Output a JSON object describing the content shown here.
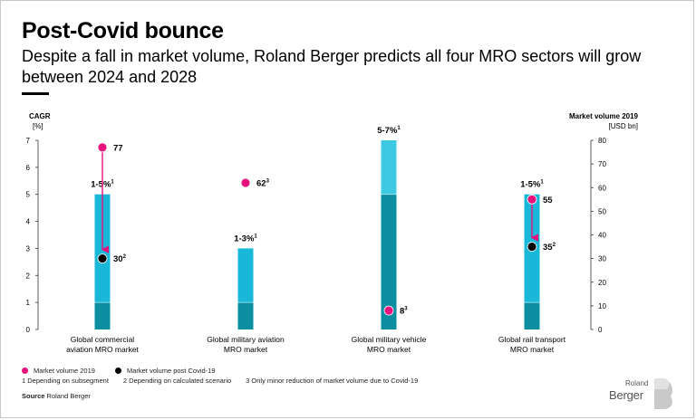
{
  "header": {
    "title": "Post-Covid bounce",
    "subtitle": "Despite a fall in market volume, Roland Berger predicts all four MRO sectors will grow between 2024 and 2028"
  },
  "colors": {
    "bar_light": "#1ab8d8",
    "bar_dark": "#0a8ea0",
    "bar_top_light": "#3ec9e3",
    "magenta": "#e8127c",
    "black": "#000000",
    "axis": "#333333"
  },
  "chart_data": {
    "type": "bar",
    "left_axis": {
      "title": "CAGR",
      "unit": "[%]",
      "ylim": [
        0,
        7
      ],
      "ticks": [
        "0",
        "1",
        "2",
        "3",
        "4",
        "5",
        "6",
        "7"
      ]
    },
    "right_axis": {
      "title": "Market volume 2019",
      "unit": "[USD bn]",
      "ylim": [
        0,
        80
      ],
      "ticks": [
        "0",
        "10",
        "20",
        "30",
        "40",
        "50",
        "60",
        "70",
        "80"
      ]
    },
    "categories": [
      "Global commercial aviation MRO market",
      "Global military aviation MRO market",
      "Global military vehicle MRO market",
      "Global rail transport MRO market"
    ],
    "category_lines": [
      [
        "Global commercial",
        "aviation MRO market"
      ],
      [
        "Global military aviation",
        "MRO market"
      ],
      [
        "Global military vehicle",
        "MRO market"
      ],
      [
        "Global rail transport",
        "MRO market"
      ]
    ],
    "cagr_ranges": [
      {
        "low": 1,
        "high": 5,
        "label": "1-5%",
        "sup": "1"
      },
      {
        "low": 1,
        "high": 3,
        "label": "1-3%",
        "sup": "1"
      },
      {
        "low": 5,
        "high": 7,
        "label": "5-7%",
        "sup": "1"
      },
      {
        "low": 1,
        "high": 5,
        "label": "1-5%",
        "sup": "1"
      }
    ],
    "series": [
      {
        "name": "Market volume 2019",
        "color": "magenta",
        "values": [
          77,
          62,
          8,
          55
        ],
        "labels": [
          "77",
          "62",
          "8",
          "55"
        ],
        "sups": [
          "",
          "3",
          "3",
          ""
        ]
      },
      {
        "name": "Market volume post Covid-19",
        "color": "black",
        "values": [
          30,
          null,
          null,
          35
        ],
        "labels": [
          "30",
          "",
          "",
          "35"
        ],
        "sups": [
          "2",
          "",
          "",
          "2"
        ]
      }
    ],
    "arrows": [
      {
        "category": 0,
        "from": 77,
        "to": 30
      },
      {
        "category": 3,
        "from": 55,
        "to": 35
      }
    ]
  },
  "legend": {
    "items": [
      {
        "label": "Market volume 2019",
        "color": "#e8127c"
      },
      {
        "label": "Market volume post Covid-19",
        "color": "#000000"
      }
    ],
    "footnotes": [
      "1  Depending on subsegment",
      "2  Depending on calculated scenario",
      "3  Only minor reduction of market volume due to Covid-19"
    ]
  },
  "source": {
    "label": "Source",
    "text": "Roland Berger"
  },
  "logo": {
    "small": "Roland",
    "big": "Berger"
  }
}
